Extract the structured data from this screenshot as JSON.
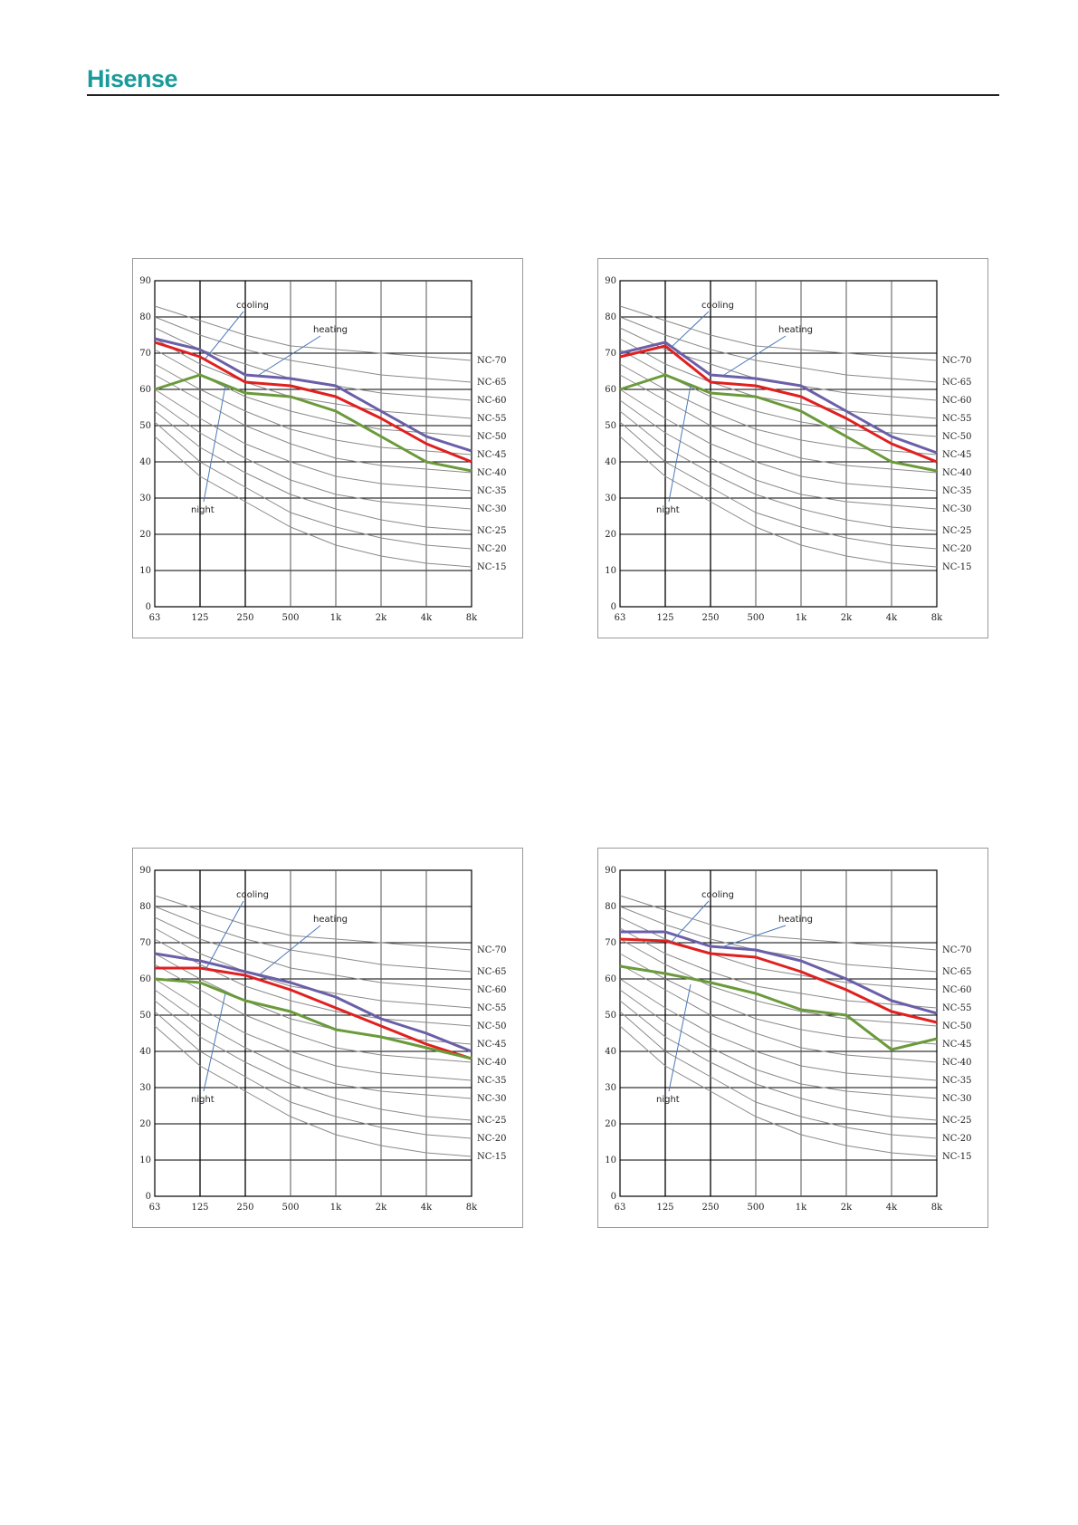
{
  "header": {
    "logo": "Hisense"
  },
  "chart_data": [
    {
      "type": "line",
      "x": [
        "63",
        "125",
        "250",
        "500",
        "1k",
        "2k",
        "4k",
        "8k"
      ],
      "yticks": [
        0,
        10,
        20,
        30,
        40,
        50,
        60,
        70,
        80,
        90
      ],
      "ylim": [
        0,
        90
      ],
      "nc_curves": [
        "NC-70",
        "NC-65",
        "NC-60",
        "NC-55",
        "NC-50",
        "NC-45",
        "NC-40",
        "NC-35",
        "NC-30",
        "NC-25",
        "NC-20",
        "NC-15"
      ],
      "annotations": [
        "cooling",
        "heating",
        "night"
      ],
      "series": [
        {
          "name": "heating",
          "color": "#6a5fa8",
          "values": [
            74,
            71,
            64,
            63,
            61,
            54,
            47,
            43
          ]
        },
        {
          "name": "cooling",
          "color": "#e02020",
          "values": [
            73,
            69,
            62,
            61,
            58,
            52,
            45,
            40
          ]
        },
        {
          "name": "night",
          "color": "#6a9a3a",
          "values": [
            60,
            64,
            59,
            58,
            54,
            47,
            40,
            37.5
          ]
        }
      ]
    },
    {
      "type": "line",
      "x": [
        "63",
        "125",
        "250",
        "500",
        "1k",
        "2k",
        "4k",
        "8k"
      ],
      "yticks": [
        0,
        10,
        20,
        30,
        40,
        50,
        60,
        70,
        80,
        90
      ],
      "ylim": [
        0,
        90
      ],
      "nc_curves": [
        "NC-70",
        "NC-65",
        "NC-60",
        "NC-55",
        "NC-50",
        "NC-45",
        "NC-40",
        "NC-35",
        "NC-30",
        "NC-25",
        "NC-20",
        "NC-15"
      ],
      "annotations": [
        "cooling",
        "heating",
        "night"
      ],
      "series": [
        {
          "name": "heating",
          "color": "#6a5fa8",
          "values": [
            70,
            73,
            64,
            63,
            61,
            54,
            47,
            42.5
          ]
        },
        {
          "name": "cooling",
          "color": "#e02020",
          "values": [
            69,
            72,
            62,
            61,
            58,
            52,
            45,
            40
          ]
        },
        {
          "name": "night",
          "color": "#6a9a3a",
          "values": [
            60,
            64,
            59,
            58,
            54,
            47,
            40,
            37.5
          ]
        }
      ]
    },
    {
      "type": "line",
      "x": [
        "63",
        "125",
        "250",
        "500",
        "1k",
        "2k",
        "4k",
        "8k"
      ],
      "yticks": [
        0,
        10,
        20,
        30,
        40,
        50,
        60,
        70,
        80,
        90
      ],
      "ylim": [
        0,
        90
      ],
      "nc_curves": [
        "NC-70",
        "NC-65",
        "NC-60",
        "NC-55",
        "NC-50",
        "NC-45",
        "NC-40",
        "NC-35",
        "NC-30",
        "NC-25",
        "NC-20",
        "NC-15"
      ],
      "annotations": [
        "cooling",
        "heating",
        "night"
      ],
      "series": [
        {
          "name": "heating",
          "color": "#6a5fa8",
          "values": [
            67,
            65,
            62,
            59,
            55,
            49,
            45,
            40
          ]
        },
        {
          "name": "cooling",
          "color": "#e02020",
          "values": [
            63,
            63,
            61,
            57,
            52,
            47,
            42,
            38
          ]
        },
        {
          "name": "night",
          "color": "#6a9a3a",
          "values": [
            60,
            59,
            54,
            51,
            46,
            44,
            41,
            38
          ]
        }
      ]
    },
    {
      "type": "line",
      "x": [
        "63",
        "125",
        "250",
        "500",
        "1k",
        "2k",
        "4k",
        "8k"
      ],
      "yticks": [
        0,
        10,
        20,
        30,
        40,
        50,
        60,
        70,
        80,
        90
      ],
      "ylim": [
        0,
        90
      ],
      "nc_curves": [
        "NC-70",
        "NC-65",
        "NC-60",
        "NC-55",
        "NC-50",
        "NC-45",
        "NC-40",
        "NC-35",
        "NC-30",
        "NC-25",
        "NC-20",
        "NC-15"
      ],
      "annotations": [
        "cooling",
        "heating",
        "night"
      ],
      "series": [
        {
          "name": "heating",
          "color": "#6a5fa8",
          "values": [
            73,
            73,
            69,
            68,
            65,
            60,
            54,
            50.5
          ]
        },
        {
          "name": "cooling",
          "color": "#e02020",
          "values": [
            71,
            70.5,
            67,
            66,
            62,
            57,
            51,
            48
          ]
        },
        {
          "name": "night",
          "color": "#6a9a3a",
          "values": [
            63.5,
            61.5,
            59,
            56,
            51.5,
            50,
            40.5,
            43.5
          ]
        }
      ]
    }
  ]
}
